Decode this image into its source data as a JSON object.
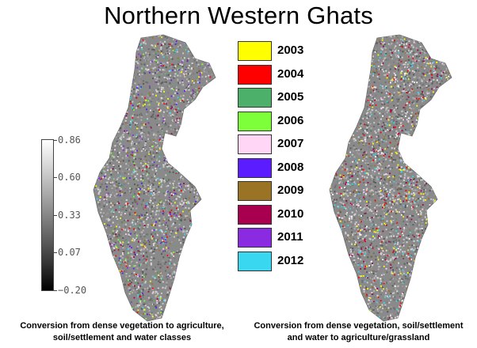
{
  "title": "Northern Western Ghats",
  "colorbar": {
    "labels": [
      "0.86",
      "0.60",
      "0.33",
      "0.07",
      "−0.20"
    ],
    "values": [
      0.86,
      0.6,
      0.33,
      0.07,
      -0.2
    ],
    "min": -0.2,
    "max": 0.86
  },
  "legend": [
    {
      "year": "2003",
      "color": "#ffff00"
    },
    {
      "year": "2004",
      "color": "#ff0000"
    },
    {
      "year": "2005",
      "color": "#4caf6a"
    },
    {
      "year": "2006",
      "color": "#7dff3a"
    },
    {
      "year": "2007",
      "color": "#ffd6f5"
    },
    {
      "year": "2008",
      "color": "#5b1cff"
    },
    {
      "year": "2009",
      "color": "#9a7424"
    },
    {
      "year": "2010",
      "color": "#a8004f"
    },
    {
      "year": "2011",
      "color": "#8a2be2"
    },
    {
      "year": "2012",
      "color": "#3ad8f0"
    }
  ],
  "captions": {
    "left": "Conversion from dense vegetation to agriculture, soil/settlement and water classes",
    "right": "Conversion from dense vegetation, soil/settlement and water to agriculture/grassland"
  }
}
